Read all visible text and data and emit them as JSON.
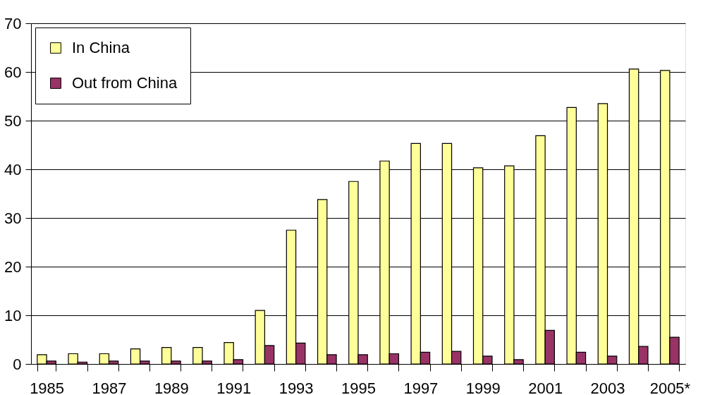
{
  "chart_data": {
    "type": "bar",
    "categories": [
      "1985",
      null,
      "1987",
      null,
      "1989",
      null,
      "1991",
      null,
      "1993",
      null,
      "1995",
      null,
      "1997",
      null,
      "1999",
      null,
      "2001",
      null,
      "2003",
      null,
      "2005*"
    ],
    "series": [
      {
        "name": "In China",
        "color": "#ffff99",
        "values": [
          1.9,
          2.1,
          2.1,
          3.1,
          3.4,
          3.4,
          4.4,
          11,
          27.5,
          33.8,
          37.5,
          41.7,
          45.3,
          45.3,
          40.3,
          40.7,
          46.9,
          52.7,
          53.5,
          60.6,
          60.3
        ]
      },
      {
        "name": "Out from China",
        "color": "#993366",
        "values": [
          0.6,
          0.4,
          0.6,
          0.6,
          0.6,
          0.6,
          0.9,
          3.8,
          4.3,
          1.9,
          1.9,
          2.1,
          2.4,
          2.6,
          1.6,
          0.9,
          6.9,
          2.4,
          1.6,
          3.6,
          5.5
        ]
      }
    ],
    "ylim": [
      0,
      70
    ],
    "yticks": [
      0,
      10,
      20,
      30,
      40,
      50,
      60,
      70
    ],
    "grid": "y",
    "legend": "top left"
  }
}
